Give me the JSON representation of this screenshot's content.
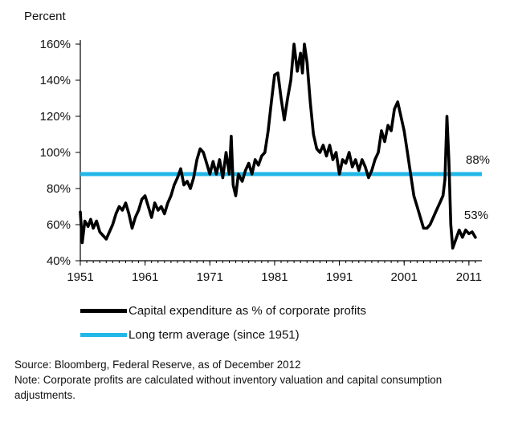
{
  "chart_data": {
    "type": "line",
    "y_unit_label": "Percent",
    "x_ticks": [
      "1951",
      "1961",
      "1971",
      "1981",
      "1991",
      "2001",
      "2011"
    ],
    "y_ticks": [
      "40%",
      "60%",
      "80%",
      "100%",
      "120%",
      "140%",
      "160%"
    ],
    "xlim": [
      1951,
      2013
    ],
    "ylim": [
      40,
      160
    ],
    "grid": false,
    "legend_position": "bottom",
    "series": [
      {
        "name": "Capital expenditure as % of corporate profits",
        "color": "#000000",
        "end_label": "53%",
        "points": [
          [
            1951.0,
            67
          ],
          [
            1951.3,
            50
          ],
          [
            1951.7,
            62
          ],
          [
            1952.2,
            59
          ],
          [
            1952.6,
            63
          ],
          [
            1953.0,
            58
          ],
          [
            1953.5,
            62
          ],
          [
            1954.0,
            56
          ],
          [
            1954.5,
            54
          ],
          [
            1955.0,
            52
          ],
          [
            1955.5,
            56
          ],
          [
            1956.0,
            60
          ],
          [
            1956.5,
            66
          ],
          [
            1957.0,
            70
          ],
          [
            1957.5,
            68
          ],
          [
            1958.0,
            72
          ],
          [
            1958.5,
            66
          ],
          [
            1959.0,
            58
          ],
          [
            1959.5,
            64
          ],
          [
            1960.0,
            68
          ],
          [
            1960.5,
            74
          ],
          [
            1961.0,
            76
          ],
          [
            1961.5,
            70
          ],
          [
            1962.0,
            64
          ],
          [
            1962.5,
            72
          ],
          [
            1963.0,
            68
          ],
          [
            1963.5,
            70
          ],
          [
            1964.0,
            66
          ],
          [
            1964.5,
            72
          ],
          [
            1965.0,
            76
          ],
          [
            1965.5,
            82
          ],
          [
            1966.0,
            86
          ],
          [
            1966.5,
            91
          ],
          [
            1967.0,
            82
          ],
          [
            1967.5,
            84
          ],
          [
            1968.0,
            80
          ],
          [
            1968.5,
            86
          ],
          [
            1969.0,
            96
          ],
          [
            1969.5,
            102
          ],
          [
            1970.0,
            100
          ],
          [
            1970.5,
            94
          ],
          [
            1971.0,
            88
          ],
          [
            1971.5,
            95
          ],
          [
            1972.0,
            88
          ],
          [
            1972.5,
            96
          ],
          [
            1973.0,
            86
          ],
          [
            1973.5,
            100
          ],
          [
            1974.0,
            88
          ],
          [
            1974.3,
            109
          ],
          [
            1974.6,
            82
          ],
          [
            1975.0,
            76
          ],
          [
            1975.4,
            88
          ],
          [
            1976.0,
            84
          ],
          [
            1976.5,
            90
          ],
          [
            1977.0,
            94
          ],
          [
            1977.5,
            88
          ],
          [
            1978.0,
            96
          ],
          [
            1978.5,
            93
          ],
          [
            1979.0,
            98
          ],
          [
            1979.5,
            100
          ],
          [
            1980.0,
            112
          ],
          [
            1980.5,
            128
          ],
          [
            1981.0,
            143
          ],
          [
            1981.5,
            144
          ],
          [
            1982.0,
            130
          ],
          [
            1982.5,
            118
          ],
          [
            1983.0,
            130
          ],
          [
            1983.5,
            140
          ],
          [
            1984.0,
            160
          ],
          [
            1984.5,
            145
          ],
          [
            1985.0,
            155
          ],
          [
            1985.3,
            144
          ],
          [
            1985.6,
            160
          ],
          [
            1986.0,
            150
          ],
          [
            1986.5,
            128
          ],
          [
            1987.0,
            110
          ],
          [
            1987.5,
            102
          ],
          [
            1988.0,
            100
          ],
          [
            1988.5,
            104
          ],
          [
            1989.0,
            98
          ],
          [
            1989.5,
            104
          ],
          [
            1990.0,
            96
          ],
          [
            1990.5,
            100
          ],
          [
            1991.0,
            88
          ],
          [
            1991.5,
            96
          ],
          [
            1992.0,
            94
          ],
          [
            1992.5,
            100
          ],
          [
            1993.0,
            92
          ],
          [
            1993.5,
            96
          ],
          [
            1994.0,
            90
          ],
          [
            1994.5,
            96
          ],
          [
            1995.0,
            92
          ],
          [
            1995.5,
            86
          ],
          [
            1996.0,
            90
          ],
          [
            1996.5,
            96
          ],
          [
            1997.0,
            100
          ],
          [
            1997.5,
            112
          ],
          [
            1998.0,
            106
          ],
          [
            1998.5,
            115
          ],
          [
            1999.0,
            112
          ],
          [
            1999.5,
            124
          ],
          [
            2000.0,
            128
          ],
          [
            2000.5,
            120
          ],
          [
            2001.0,
            112
          ],
          [
            2001.5,
            100
          ],
          [
            2002.0,
            88
          ],
          [
            2002.5,
            76
          ],
          [
            2003.0,
            70
          ],
          [
            2003.5,
            64
          ],
          [
            2004.0,
            58
          ],
          [
            2004.5,
            58
          ],
          [
            2005.0,
            60
          ],
          [
            2005.5,
            64
          ],
          [
            2006.0,
            68
          ],
          [
            2006.5,
            72
          ],
          [
            2007.0,
            76
          ],
          [
            2007.3,
            85
          ],
          [
            2007.6,
            120
          ],
          [
            2007.9,
            96
          ],
          [
            2008.2,
            60
          ],
          [
            2008.5,
            47
          ],
          [
            2009.0,
            52
          ],
          [
            2009.5,
            57
          ],
          [
            2010.0,
            53
          ],
          [
            2010.5,
            57
          ],
          [
            2011.0,
            55
          ],
          [
            2011.5,
            56
          ],
          [
            2012.0,
            53
          ]
        ]
      },
      {
        "name": "Long term average (since 1951)",
        "color": "#21b7e8",
        "end_label": "88%",
        "value": 88
      }
    ]
  },
  "source_note": "Source: Bloomberg, Federal Reserve, as of December 2012",
  "note": "Note: Corporate profits are calculated without inventory valuation and capital consumption adjustments."
}
